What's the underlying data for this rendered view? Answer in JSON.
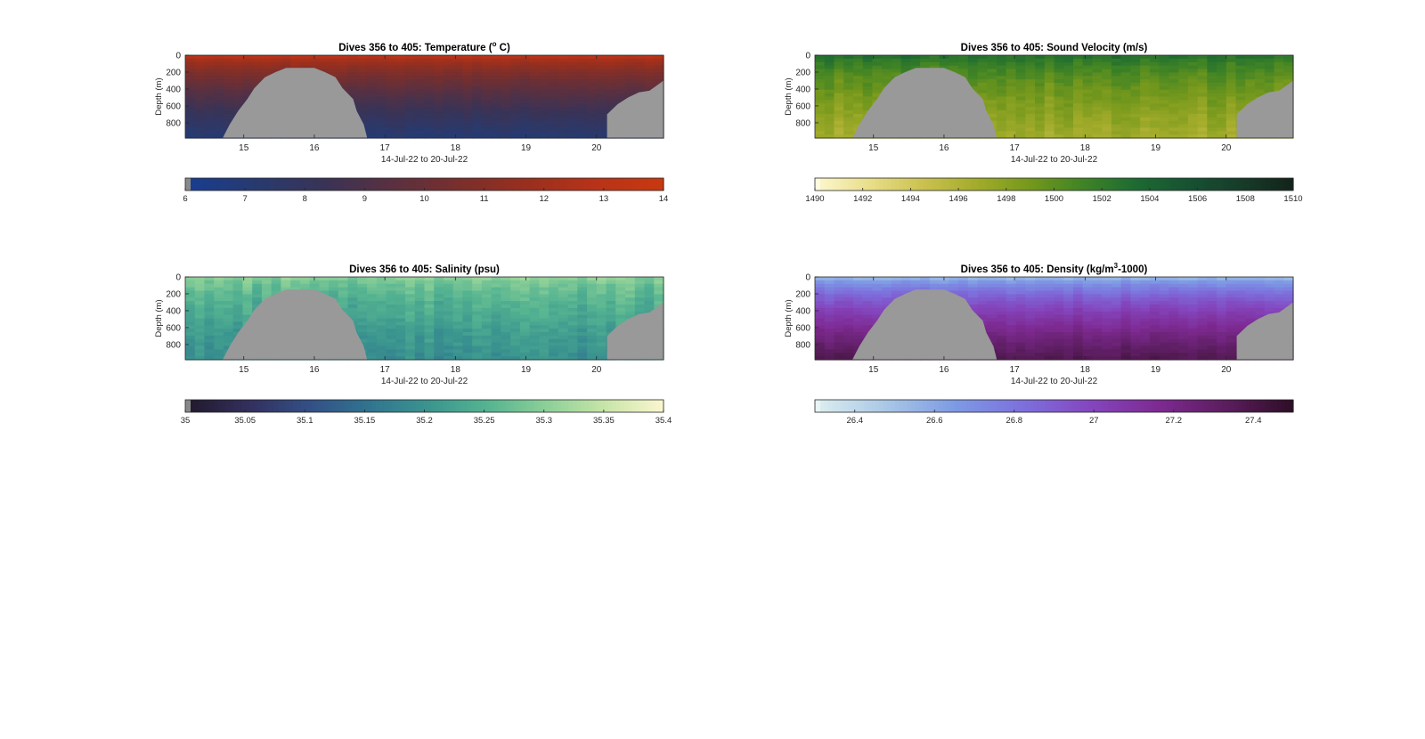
{
  "figure": {
    "background": "#ffffff",
    "mask_color": "#999999"
  },
  "chart_data": [
    {
      "type": "heatmap",
      "title": "Dives 356 to 405: Temperature (",
      "title_super": "o",
      "title_tail": " C)",
      "ylabel": "Depth (m)",
      "xlabel": "14-Jul-22 to 20-Jul-22",
      "xlim": [
        14.17,
        20.95
      ],
      "ylim": [
        0,
        980
      ],
      "y_reversed": true,
      "xticks": [
        "15",
        "16",
        "17",
        "18",
        "19",
        "20"
      ],
      "yticks": [
        "0",
        "200",
        "400",
        "600",
        "800"
      ],
      "colorbar": {
        "min": 6,
        "max": 14,
        "ticks": [
          "6",
          "7",
          "8",
          "9",
          "10",
          "11",
          "12",
          "13",
          "14"
        ],
        "colors": [
          "#1a3d8f",
          "#283a6e",
          "#3a3356",
          "#5a3040",
          "#7a2f2c",
          "#9a2f1e",
          "#b83318",
          "#c8390f"
        ],
        "low_cap_color": "#8a8a8a"
      },
      "profile": {
        "surface": 13.5,
        "deep": 7.0,
        "noise": 0.25
      },
      "mask": {
        "left_hill": [
          [
            14.7,
            980
          ],
          [
            14.8,
            820
          ],
          [
            14.92,
            660
          ],
          [
            15.05,
            520
          ],
          [
            15.15,
            390
          ],
          [
            15.3,
            260
          ],
          [
            15.45,
            200
          ],
          [
            15.6,
            150
          ],
          [
            16.0,
            150
          ],
          [
            16.15,
            200
          ],
          [
            16.3,
            260
          ],
          [
            16.4,
            390
          ],
          [
            16.55,
            520
          ],
          [
            16.6,
            660
          ],
          [
            16.7,
            820
          ],
          [
            16.75,
            980
          ]
        ],
        "right_ramp": [
          [
            20.15,
            980
          ],
          [
            20.15,
            700
          ],
          [
            20.3,
            580
          ],
          [
            20.45,
            500
          ],
          [
            20.6,
            440
          ],
          [
            20.75,
            420
          ],
          [
            20.85,
            360
          ],
          [
            20.95,
            300
          ],
          [
            20.95,
            980
          ]
        ]
      }
    },
    {
      "type": "heatmap",
      "title": "Dives 356 to 405: Sound Velocity (m/s)",
      "ylabel": "Depth (m)",
      "xlabel": "14-Jul-22 to 20-Jul-22",
      "xlim": [
        14.17,
        20.95
      ],
      "ylim": [
        0,
        980
      ],
      "y_reversed": true,
      "xticks": [
        "15",
        "16",
        "17",
        "18",
        "19",
        "20"
      ],
      "yticks": [
        "0",
        "200",
        "400",
        "600",
        "800"
      ],
      "colorbar": {
        "min": 1490,
        "max": 1510,
        "ticks": [
          "1490",
          "1492",
          "1494",
          "1496",
          "1498",
          "1500",
          "1502",
          "1504",
          "1506",
          "1508",
          "1510"
        ],
        "colors": [
          "#fbf6c8",
          "#e8dc86",
          "#c9c04e",
          "#a2ab2a",
          "#74981c",
          "#3f8325",
          "#1d6b32",
          "#175232",
          "#173c2a",
          "#13231a"
        ],
        "low_cap_color": "#fffbe0"
      },
      "profile": {
        "surface": 1503.5,
        "deep": 1496.5,
        "noise": 1.2
      },
      "mask": {
        "left_hill": [
          [
            14.7,
            980
          ],
          [
            14.8,
            820
          ],
          [
            14.92,
            660
          ],
          [
            15.05,
            520
          ],
          [
            15.15,
            390
          ],
          [
            15.3,
            260
          ],
          [
            15.45,
            200
          ],
          [
            15.6,
            150
          ],
          [
            16.0,
            150
          ],
          [
            16.15,
            200
          ],
          [
            16.3,
            260
          ],
          [
            16.4,
            390
          ],
          [
            16.55,
            520
          ],
          [
            16.6,
            660
          ],
          [
            16.7,
            820
          ],
          [
            16.75,
            980
          ]
        ],
        "right_ramp": [
          [
            20.15,
            980
          ],
          [
            20.15,
            700
          ],
          [
            20.3,
            580
          ],
          [
            20.45,
            500
          ],
          [
            20.6,
            440
          ],
          [
            20.75,
            420
          ],
          [
            20.85,
            360
          ],
          [
            20.95,
            300
          ],
          [
            20.95,
            980
          ]
        ]
      }
    },
    {
      "type": "heatmap",
      "title": "Dives 356 to 405: Salinity (psu)",
      "ylabel": "Depth (m)",
      "xlabel": "14-Jul-22 to 20-Jul-22",
      "xlim": [
        14.17,
        20.95
      ],
      "ylim": [
        0,
        980
      ],
      "y_reversed": true,
      "xticks": [
        "15",
        "16",
        "17",
        "18",
        "19",
        "20"
      ],
      "yticks": [
        "0",
        "200",
        "400",
        "600",
        "800"
      ],
      "colorbar": {
        "min": 35,
        "max": 35.4,
        "ticks": [
          "35",
          "35.05",
          "35.1",
          "35.15",
          "35.2",
          "35.25",
          "35.3",
          "35.35",
          "35.4"
        ],
        "colors": [
          "#221a2e",
          "#33305e",
          "#334f86",
          "#31738f",
          "#3a948f",
          "#54b391",
          "#8bcf97",
          "#c7e5a8",
          "#fbf6cf"
        ],
        "low_cap_color": "#888888"
      },
      "profile": {
        "surface": 35.31,
        "deep": 35.19,
        "noise": 0.03
      },
      "mask": {
        "left_hill": [
          [
            14.7,
            980
          ],
          [
            14.8,
            820
          ],
          [
            14.92,
            660
          ],
          [
            15.05,
            520
          ],
          [
            15.15,
            390
          ],
          [
            15.3,
            260
          ],
          [
            15.45,
            200
          ],
          [
            15.6,
            150
          ],
          [
            16.0,
            150
          ],
          [
            16.15,
            200
          ],
          [
            16.3,
            260
          ],
          [
            16.4,
            390
          ],
          [
            16.55,
            520
          ],
          [
            16.6,
            660
          ],
          [
            16.7,
            820
          ],
          [
            16.75,
            980
          ]
        ],
        "right_ramp": [
          [
            20.15,
            980
          ],
          [
            20.15,
            700
          ],
          [
            20.3,
            580
          ],
          [
            20.45,
            500
          ],
          [
            20.6,
            440
          ],
          [
            20.75,
            420
          ],
          [
            20.85,
            360
          ],
          [
            20.95,
            300
          ],
          [
            20.95,
            980
          ]
        ]
      }
    },
    {
      "type": "heatmap",
      "title": "Dives 356 to 405: Density (kg/m",
      "title_super": "3",
      "title_tail": "-1000)",
      "ylabel": "Depth (m)",
      "xlabel": "14-Jul-22 to 20-Jul-22",
      "xlim": [
        14.17,
        20.95
      ],
      "ylim": [
        0,
        980
      ],
      "y_reversed": true,
      "xticks": [
        "15",
        "16",
        "17",
        "18",
        "19",
        "20"
      ],
      "yticks": [
        "0",
        "200",
        "400",
        "600",
        "800"
      ],
      "colorbar": {
        "min": 26.3,
        "max": 27.5,
        "ticks": [
          "26.4",
          "26.6",
          "26.8",
          "27",
          "27.2",
          "27.4"
        ],
        "colors": [
          "#d9ecef",
          "#a8c6e6",
          "#7d9ae4",
          "#7d70dd",
          "#8446be",
          "#7e2a92",
          "#5b1d5e",
          "#2e0e26"
        ],
        "low_cap_color": "#e8f4f5"
      },
      "profile": {
        "surface": 26.45,
        "deep": 27.38,
        "noise": 0.05
      },
      "mask": {
        "left_hill": [
          [
            14.7,
            980
          ],
          [
            14.8,
            820
          ],
          [
            14.92,
            660
          ],
          [
            15.05,
            520
          ],
          [
            15.15,
            390
          ],
          [
            15.3,
            260
          ],
          [
            15.45,
            200
          ],
          [
            15.6,
            150
          ],
          [
            16.0,
            150
          ],
          [
            16.15,
            200
          ],
          [
            16.3,
            260
          ],
          [
            16.4,
            390
          ],
          [
            16.55,
            520
          ],
          [
            16.6,
            660
          ],
          [
            16.7,
            820
          ],
          [
            16.75,
            980
          ]
        ],
        "right_ramp": [
          [
            20.15,
            980
          ],
          [
            20.15,
            700
          ],
          [
            20.3,
            580
          ],
          [
            20.45,
            500
          ],
          [
            20.6,
            440
          ],
          [
            20.75,
            420
          ],
          [
            20.85,
            360
          ],
          [
            20.95,
            300
          ],
          [
            20.95,
            980
          ]
        ]
      }
    }
  ]
}
